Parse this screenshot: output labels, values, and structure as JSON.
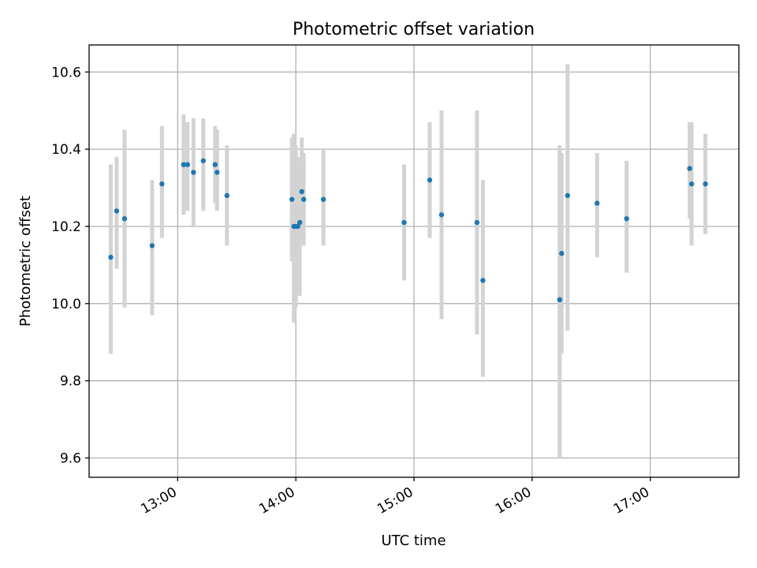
{
  "chart_data": {
    "type": "scatter",
    "title": "Photometric offset variation",
    "xlabel": "UTC time",
    "ylabel": "Photometric offset",
    "grid": true,
    "xlim": [
      "12:15",
      "17:45"
    ],
    "ylim": [
      9.55,
      10.67
    ],
    "x_ticks": [
      "13:00",
      "14:00",
      "15:00",
      "16:00",
      "17:00"
    ],
    "y_ticks": [
      9.6,
      9.8,
      10.0,
      10.2,
      10.4,
      10.6
    ],
    "colors": {
      "points": "#1f77b4",
      "errorbars": "#d3d3d3"
    },
    "points": [
      {
        "x": "12:26",
        "y": 10.12,
        "lo": 9.87,
        "hi": 10.36
      },
      {
        "x": "12:29",
        "y": 10.24,
        "lo": 10.09,
        "hi": 10.38
      },
      {
        "x": "12:33",
        "y": 10.22,
        "lo": 9.99,
        "hi": 10.45
      },
      {
        "x": "12:47",
        "y": 10.15,
        "lo": 9.97,
        "hi": 10.32
      },
      {
        "x": "12:52",
        "y": 10.31,
        "lo": 10.17,
        "hi": 10.46
      },
      {
        "x": "13:03",
        "y": 10.36,
        "lo": 10.23,
        "hi": 10.49
      },
      {
        "x": "13:05",
        "y": 10.36,
        "lo": 10.24,
        "hi": 10.47
      },
      {
        "x": "13:08",
        "y": 10.34,
        "lo": 10.2,
        "hi": 10.48
      },
      {
        "x": "13:13",
        "y": 10.37,
        "lo": 10.24,
        "hi": 10.48
      },
      {
        "x": "13:19",
        "y": 10.36,
        "lo": 10.26,
        "hi": 10.46
      },
      {
        "x": "13:20",
        "y": 10.34,
        "lo": 10.24,
        "hi": 10.45
      },
      {
        "x": "13:25",
        "y": 10.28,
        "lo": 10.15,
        "hi": 10.41
      },
      {
        "x": "13:58",
        "y": 10.27,
        "lo": 10.11,
        "hi": 10.43
      },
      {
        "x": "13:59",
        "y": 10.2,
        "lo": 9.95,
        "hi": 10.44
      },
      {
        "x": "14:00",
        "y": 10.2,
        "lo": 9.99,
        "hi": 10.41
      },
      {
        "x": "14:01",
        "y": 10.2,
        "lo": 10.03,
        "hi": 10.38
      },
      {
        "x": "14:02",
        "y": 10.21,
        "lo": 10.02,
        "hi": 10.36
      },
      {
        "x": "14:03",
        "y": 10.29,
        "lo": 10.16,
        "hi": 10.43
      },
      {
        "x": "14:04",
        "y": 10.27,
        "lo": 10.15,
        "hi": 10.39
      },
      {
        "x": "14:14",
        "y": 10.27,
        "lo": 10.15,
        "hi": 10.4
      },
      {
        "x": "14:55",
        "y": 10.21,
        "lo": 10.06,
        "hi": 10.36
      },
      {
        "x": "15:08",
        "y": 10.32,
        "lo": 10.17,
        "hi": 10.47
      },
      {
        "x": "15:14",
        "y": 10.23,
        "lo": 9.96,
        "hi": 10.5
      },
      {
        "x": "15:32",
        "y": 10.21,
        "lo": 9.92,
        "hi": 10.5
      },
      {
        "x": "15:35",
        "y": 10.06,
        "lo": 9.81,
        "hi": 10.32
      },
      {
        "x": "16:14",
        "y": 10.01,
        "lo": 9.6,
        "hi": 10.41
      },
      {
        "x": "16:14",
        "y": 10.01,
        "lo": 9.62,
        "hi": 10.4
      },
      {
        "x": "16:15",
        "y": 10.13,
        "lo": 9.87,
        "hi": 10.39
      },
      {
        "x": "16:18",
        "y": 10.28,
        "lo": 9.93,
        "hi": 10.62
      },
      {
        "x": "16:33",
        "y": 10.26,
        "lo": 10.12,
        "hi": 10.39
      },
      {
        "x": "16:48",
        "y": 10.22,
        "lo": 10.08,
        "hi": 10.37
      },
      {
        "x": "17:20",
        "y": 10.35,
        "lo": 10.22,
        "hi": 10.47
      },
      {
        "x": "17:21",
        "y": 10.31,
        "lo": 10.15,
        "hi": 10.47
      },
      {
        "x": "17:28",
        "y": 10.31,
        "lo": 10.18,
        "hi": 10.44
      }
    ]
  }
}
